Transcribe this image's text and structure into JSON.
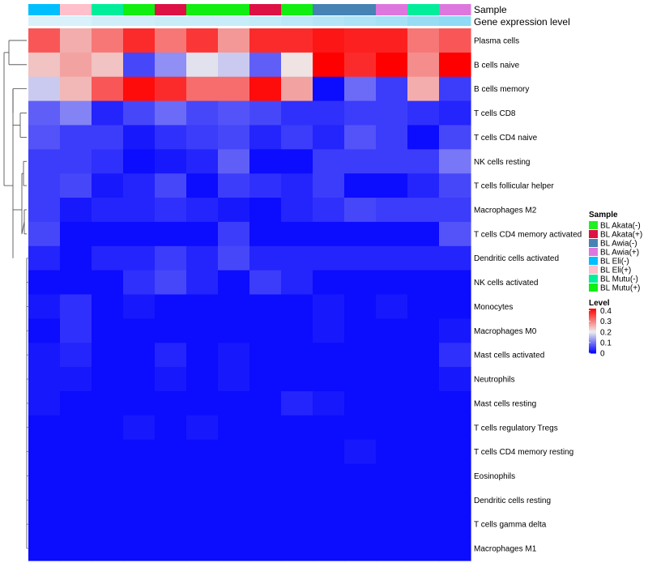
{
  "chart_data": {
    "type": "heatmap",
    "annotation_labels": {
      "sample": "Sample",
      "expression": "Gene expression level"
    },
    "sample_colors": {
      "BL Akata(-)": "#22ee22",
      "BL Akata(+)": "#dd1144",
      "BL Awia(-)": "#4682b4",
      "BL Awia(+)": "#dd77dd",
      "BL Eli(-)": "#00bfff",
      "BL Eli(+)": "#ffbfcb",
      "BL Mutu(-)": "#00ee99",
      "BL Mutu(+)": "#11ee11"
    },
    "columns": [
      {
        "sample": "BL Eli(-)",
        "expression": 0.1
      },
      {
        "sample": "BL Eli(+)",
        "expression": 0.1
      },
      {
        "sample": "BL Mutu(-)",
        "expression": 0.15
      },
      {
        "sample": "BL Mutu(+)",
        "expression": 0.15
      },
      {
        "sample": "BL Akata(+)",
        "expression": 0.2
      },
      {
        "sample": "BL Mutu(+)",
        "expression": 0.2
      },
      {
        "sample": "BL Mutu(+)",
        "expression": 0.2
      },
      {
        "sample": "BL Akata(+)",
        "expression": 0.25
      },
      {
        "sample": "BL Mutu(+)",
        "expression": 0.3
      },
      {
        "sample": "BL Awia(-)",
        "expression": 0.35
      },
      {
        "sample": "BL Awia(-)",
        "expression": 0.4
      },
      {
        "sample": "BL Awia(+)",
        "expression": 0.45
      },
      {
        "sample": "BL Mutu(-)",
        "expression": 0.55
      },
      {
        "sample": "BL Awia(+)",
        "expression": 0.6
      }
    ],
    "rows": [
      "Plasma cells",
      "B cells naive",
      "B cells memory",
      "T cells CD8",
      "T cells CD4 naive",
      "NK cells resting",
      "T cells follicular helper",
      "Macrophages M2",
      "T cells CD4 memory activated",
      "Dendritic cells activated",
      "NK cells activated",
      "Monocytes",
      "Macrophages M0",
      "Mast cells activated",
      "Neutrophils",
      "Mast cells resting",
      "T cells regulatory  Tregs",
      "T cells CD4 memory resting",
      "Eosinophils",
      "Dendritic cells resting",
      "T cells gamma delta",
      "Macrophages M1"
    ],
    "values": [
      [
        0.34,
        0.26,
        0.31,
        0.38,
        0.31,
        0.37,
        0.28,
        0.38,
        0.38,
        0.4,
        0.39,
        0.39,
        0.31,
        0.34
      ],
      [
        0.24,
        0.27,
        0.24,
        0.06,
        0.12,
        0.19,
        0.17,
        0.08,
        0.21,
        0.42,
        0.38,
        0.42,
        0.29,
        0.42
      ],
      [
        0.17,
        0.25,
        0.34,
        0.41,
        0.38,
        0.32,
        0.32,
        0.41,
        0.27,
        0.01,
        0.09,
        0.05,
        0.26,
        0.05
      ],
      [
        0.08,
        0.11,
        0.03,
        0.06,
        0.09,
        0.06,
        0.07,
        0.06,
        0.04,
        0.04,
        0.05,
        0.05,
        0.04,
        0.03
      ],
      [
        0.07,
        0.05,
        0.05,
        0.02,
        0.04,
        0.05,
        0.06,
        0.03,
        0.05,
        0.03,
        0.07,
        0.05,
        0.01,
        0.06
      ],
      [
        0.05,
        0.05,
        0.04,
        0.01,
        0.02,
        0.03,
        0.08,
        0.01,
        0.01,
        0.05,
        0.05,
        0.05,
        0.05,
        0.1
      ],
      [
        0.05,
        0.06,
        0.02,
        0.03,
        0.06,
        0.01,
        0.05,
        0.04,
        0.03,
        0.05,
        0.01,
        0.01,
        0.03,
        0.06
      ],
      [
        0.05,
        0.02,
        0.03,
        0.03,
        0.04,
        0.03,
        0.02,
        0.01,
        0.03,
        0.04,
        0.06,
        0.05,
        0.05,
        0.05
      ],
      [
        0.06,
        0.01,
        0.01,
        0.01,
        0.01,
        0.01,
        0.05,
        0.01,
        0.01,
        0.01,
        0.01,
        0.01,
        0.01,
        0.07
      ],
      [
        0.03,
        0.01,
        0.03,
        0.03,
        0.05,
        0.03,
        0.06,
        0.03,
        0.03,
        0.03,
        0.03,
        0.03,
        0.03,
        0.03
      ],
      [
        0.01,
        0.01,
        0.01,
        0.04,
        0.06,
        0.03,
        0.01,
        0.05,
        0.03,
        0.01,
        0.01,
        0.01,
        0.01,
        0.01
      ],
      [
        0.02,
        0.04,
        0.01,
        0.02,
        0.01,
        0.01,
        0.01,
        0.01,
        0.01,
        0.02,
        0.01,
        0.02,
        0.01,
        0.01
      ],
      [
        0.01,
        0.04,
        0.01,
        0.01,
        0.01,
        0.01,
        0.01,
        0.01,
        0.01,
        0.02,
        0.01,
        0.01,
        0.01,
        0.02
      ],
      [
        0.02,
        0.03,
        0.01,
        0.01,
        0.03,
        0.01,
        0.02,
        0.01,
        0.01,
        0.01,
        0.01,
        0.01,
        0.01,
        0.04
      ],
      [
        0.02,
        0.02,
        0.01,
        0.01,
        0.02,
        0.01,
        0.02,
        0.01,
        0.01,
        0.01,
        0.01,
        0.01,
        0.01,
        0.02
      ],
      [
        0.02,
        0.01,
        0.01,
        0.01,
        0.01,
        0.01,
        0.01,
        0.01,
        0.03,
        0.02,
        0.01,
        0.01,
        0.01,
        0.01
      ],
      [
        0.01,
        0.01,
        0.01,
        0.02,
        0.01,
        0.02,
        0.01,
        0.01,
        0.01,
        0.01,
        0.01,
        0.01,
        0.01,
        0.01
      ],
      [
        0.01,
        0.01,
        0.01,
        0.01,
        0.01,
        0.01,
        0.01,
        0.01,
        0.01,
        0.01,
        0.02,
        0.01,
        0.01,
        0.01
      ],
      [
        0.01,
        0.01,
        0.01,
        0.01,
        0.01,
        0.01,
        0.01,
        0.01,
        0.01,
        0.01,
        0.01,
        0.01,
        0.01,
        0.01
      ],
      [
        0.01,
        0.01,
        0.01,
        0.01,
        0.01,
        0.01,
        0.01,
        0.01,
        0.01,
        0.01,
        0.01,
        0.01,
        0.01,
        0.01
      ],
      [
        0.01,
        0.01,
        0.01,
        0.01,
        0.01,
        0.01,
        0.01,
        0.01,
        0.01,
        0.01,
        0.01,
        0.01,
        0.01,
        0.01
      ],
      [
        0.01,
        0.01,
        0.01,
        0.01,
        0.01,
        0.01,
        0.01,
        0.01,
        0.01,
        0.01,
        0.01,
        0.01,
        0.01,
        0.01
      ]
    ],
    "legend": {
      "sample_title": "Sample",
      "sample_entries": [
        "BL Akata(-)",
        "BL Akata(+)",
        "BL Awia(-)",
        "BL Awia(+)",
        "BL Eli(-)",
        "BL Eli(+)",
        "BL Mutu(-)",
        "BL Mutu(+)"
      ],
      "level_title": "Level",
      "level_ticks": [
        0.4,
        0.3,
        0.2,
        0.1,
        0
      ],
      "color_scale": {
        "low": "#0000ff",
        "mid": "#eeeeee",
        "high": "#ff0000",
        "min": 0,
        "mid_value": 0.2,
        "max": 0.42
      },
      "expression_scale": {
        "low": "#e6f5fc",
        "high": "#55c8ee"
      }
    }
  }
}
